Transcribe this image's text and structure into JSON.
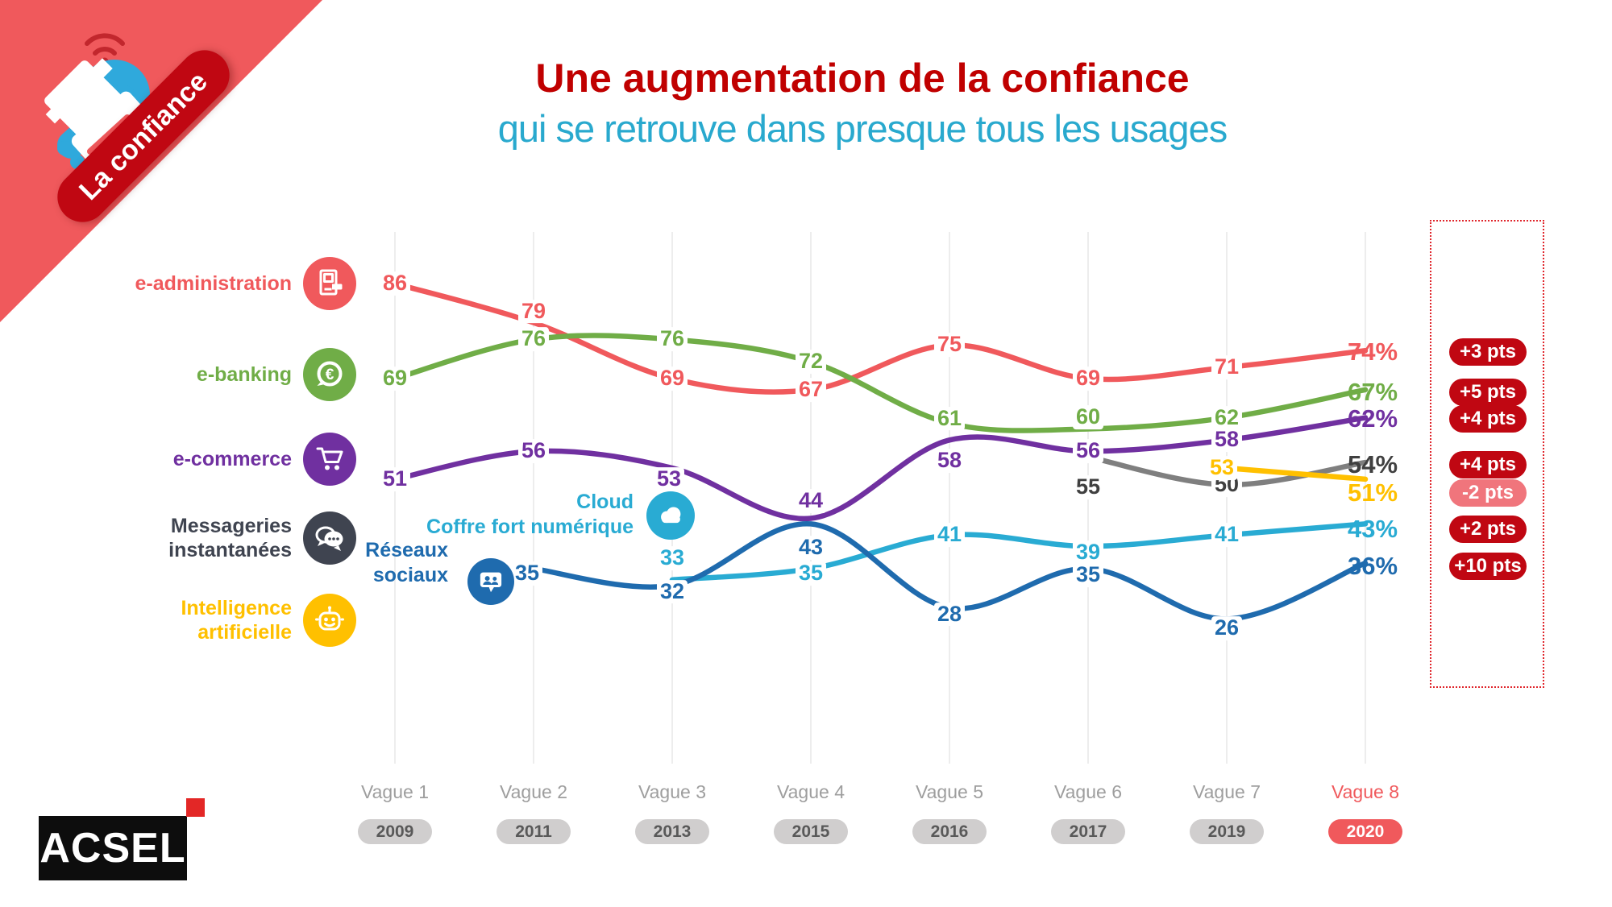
{
  "ribbon": {
    "label": "La confiance"
  },
  "title": {
    "line1": "Une augmentation de la confiance",
    "line2": "qui se retrouve dans presque tous les usages"
  },
  "colors": {
    "title_red": "#C00000",
    "subtitle_cyan": "#29A9CE",
    "corner_salmon": "#F0595C",
    "ribbon_red": "#C00712",
    "badge_red": "#C00712",
    "badge_pink": "#F0757C",
    "axis_gray": "#9E9E9E",
    "pill_gray": "#D0CECE",
    "grid": "#EDEDED"
  },
  "chart_data": {
    "type": "line",
    "categories": [
      "Vague 1",
      "Vague 2",
      "Vague 3",
      "Vague 4",
      "Vague 5",
      "Vague 6",
      "Vague 7",
      "Vague 8"
    ],
    "years": [
      "2009",
      "2011",
      "2013",
      "2015",
      "2016",
      "2017",
      "2019",
      "2020"
    ],
    "ylim": [
      20,
      90
    ],
    "grid": "vertical-only",
    "series": [
      {
        "name": "e-administration",
        "color": "#F0595C",
        "icon": "document-icon",
        "values": [
          86,
          79,
          69,
          67,
          75,
          69,
          71,
          74
        ],
        "final_label": "74%",
        "delta": "+3 pts"
      },
      {
        "name": "e-banking",
        "color": "#70AD47",
        "icon": "euro-icon",
        "values": [
          69,
          76,
          76,
          72,
          61,
          60,
          62,
          67
        ],
        "final_label": "67%",
        "delta": "+5 pts"
      },
      {
        "name": "e-commerce",
        "color": "#7030A0",
        "icon": "cart-icon",
        "values": [
          51,
          56,
          53,
          44,
          58,
          56,
          58,
          62
        ],
        "final_label": "62%",
        "delta": "+4 pts"
      },
      {
        "name": "Messageries instantanées",
        "color": "#7F7F7F",
        "label_color": "#404040",
        "icon": "chat-icon",
        "values": [
          null,
          null,
          null,
          null,
          null,
          55,
          50,
          54
        ],
        "final_label": "54%",
        "delta": "+4 pts"
      },
      {
        "name": "Intelligence artificielle",
        "color": "#FFC000",
        "icon": "robot-icon",
        "values": [
          null,
          null,
          null,
          null,
          null,
          null,
          53,
          51
        ],
        "final_label": "51%",
        "delta": "-2 pts"
      },
      {
        "name": "Cloud / Coffre fort numérique",
        "color": "#29ABD3",
        "icon": "cloud-icon",
        "values": [
          null,
          null,
          33,
          35,
          41,
          39,
          41,
          43
        ],
        "final_label": "43%",
        "delta": "+2 pts"
      },
      {
        "name": "Réseaux sociaux",
        "color": "#1F6BAE",
        "icon": "users-bubble-icon",
        "values": [
          null,
          35,
          32,
          43,
          28,
          35,
          26,
          36
        ],
        "final_label": "36%",
        "delta": "+10 pts"
      }
    ]
  },
  "legend": [
    {
      "lines": [
        "e-administration"
      ],
      "color": "#F0595C",
      "icon": "document-icon"
    },
    {
      "lines": [
        "e-banking"
      ],
      "color": "#70AD47",
      "icon": "euro-icon"
    },
    {
      "lines": [
        "e-commerce"
      ],
      "color": "#7030A0",
      "icon": "cart-icon"
    },
    {
      "lines": [
        "Messageries",
        "instantanées"
      ],
      "color": "#3F4450",
      "icon": "chat-icon"
    },
    {
      "lines": [
        "Intelligence",
        "artificielle"
      ],
      "color": "#FFC000",
      "icon": "robot-icon"
    }
  ],
  "floating": {
    "cloud_line1": "Cloud",
    "cloud_line2": "Coffre fort numérique",
    "cloud_color": "#29ABD3",
    "cloud_icon": "cloud-icon",
    "reseaux_line1": "Réseaux",
    "reseaux_line2": "sociaux",
    "reseaux_color": "#1F6BAE",
    "reseaux_icon": "users-bubble-icon"
  },
  "footer": {
    "brand": "ACSEL"
  }
}
